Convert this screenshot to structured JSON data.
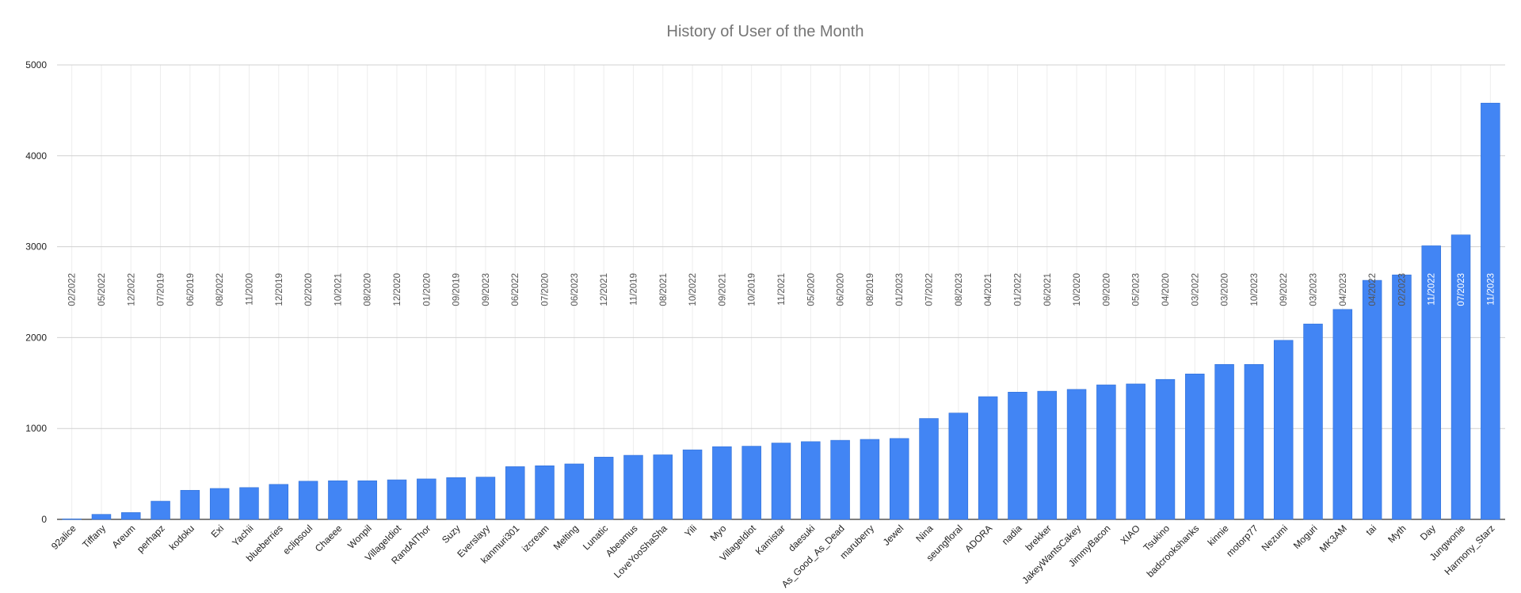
{
  "chart_data": {
    "type": "bar",
    "title": "History of User of the Month",
    "xlabel": "",
    "ylabel": "",
    "ylim": [
      0,
      5000
    ],
    "yticks": [
      "0",
      "1000",
      "2000",
      "3000",
      "4000",
      "5000"
    ],
    "grid": true,
    "legend": "none",
    "bar_color": "#4285f4",
    "categories": [
      "92alice",
      "Tiffany",
      "Areum",
      "perhapz",
      "kodoku",
      "Exi",
      "Yachii",
      "blueberries",
      "eclipsoul",
      "Chaeee",
      "Wonpil",
      "VillageIdiot",
      "RandAlThor",
      "Suzy",
      "Everslayy",
      "kanmuri301",
      "izcream",
      "Melting",
      "Lunatic",
      "Abeamus",
      "LoveYooShaSha",
      "Yili",
      "Myo",
      "VillageIdiot",
      "Kamistar",
      "daesuki",
      "As_Good_As_Dead",
      "maruberry",
      "Jewel",
      "Nina",
      "seungfloral",
      "ADORA",
      "nadia",
      "brekker",
      "JakeyWantsCakey",
      "JimmyBacon",
      "XIAO",
      "Tsukino",
      "badcrookshanks",
      "kinnie",
      "motorp77",
      "Nezumi",
      "Moguri",
      "MK3AM",
      "tai",
      "Myth",
      "Day",
      "Jungwonie",
      "Harmony_Starz"
    ],
    "dates": [
      "02/2022",
      "05/2022",
      "12/2022",
      "07/2019",
      "06/2019",
      "08/2022",
      "11/2020",
      "12/2019",
      "02/2020",
      "10/2021",
      "08/2020",
      "12/2020",
      "01/2020",
      "09/2019",
      "09/2023",
      "06/2022",
      "07/2020",
      "06/2023",
      "12/2021",
      "11/2019",
      "08/2021",
      "10/2022",
      "09/2021",
      "10/2019",
      "11/2021",
      "05/2020",
      "06/2020",
      "08/2019",
      "01/2023",
      "07/2022",
      "08/2023",
      "04/2021",
      "01/2022",
      "06/2021",
      "10/2020",
      "09/2020",
      "05/2023",
      "04/2020",
      "03/2022",
      "03/2020",
      "10/2023",
      "09/2022",
      "03/2023",
      "04/2023",
      "04/2022",
      "02/2023",
      "11/2022",
      "07/2023",
      "11/2023"
    ],
    "values": [
      5,
      55,
      75,
      200,
      320,
      340,
      350,
      385,
      420,
      425,
      425,
      435,
      445,
      460,
      465,
      580,
      590,
      610,
      685,
      705,
      710,
      765,
      800,
      805,
      840,
      855,
      870,
      880,
      890,
      1110,
      1170,
      1350,
      1400,
      1410,
      1430,
      1480,
      1490,
      1540,
      1600,
      1705,
      1705,
      1970,
      2150,
      2310,
      2630,
      2690,
      3010,
      3130,
      4580
    ]
  }
}
